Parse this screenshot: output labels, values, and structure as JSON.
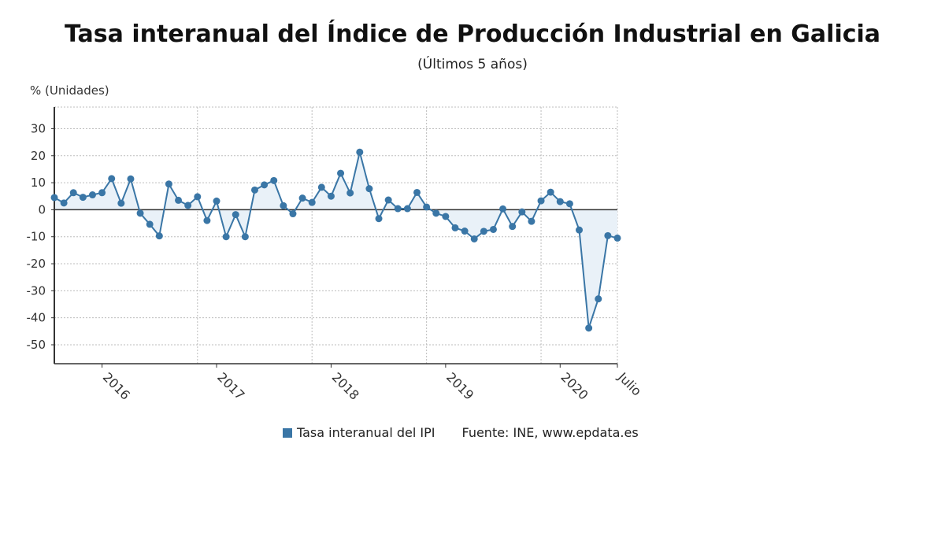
{
  "chart_data": {
    "type": "line",
    "title": "Tasa interanual del Índice de Producción Industrial en Galicia",
    "subtitle": "(Últimos 5 años)",
    "ylabel": "% (Unidades)",
    "ylim": [
      -57,
      38
    ],
    "yticks": [
      30,
      20,
      10,
      0,
      -10,
      -20,
      -30,
      -40,
      -50
    ],
    "x_tick_labels": [
      {
        "label": "2016",
        "index": 5
      },
      {
        "label": "2017",
        "index": 17
      },
      {
        "label": "2018",
        "index": 29
      },
      {
        "label": "2019",
        "index": 41
      },
      {
        "label": "2020",
        "index": 53
      },
      {
        "label": "Julio",
        "index": 59
      }
    ],
    "grid": true,
    "legend_position": "bottom",
    "series": [
      {
        "name": "Tasa interanual del IPI",
        "color": "#3a76a6",
        "values": [
          4.5,
          2.5,
          6.3,
          4.6,
          5.5,
          6.3,
          11.5,
          2.4,
          11.4,
          -1.3,
          -5.4,
          -9.7,
          9.5,
          3.5,
          1.6,
          4.8,
          -4.0,
          3.2,
          -10.0,
          -1.8,
          -10.0,
          7.3,
          9.2,
          10.8,
          1.5,
          -1.5,
          4.3,
          2.7,
          8.3,
          5.0,
          13.5,
          6.2,
          21.3,
          7.8,
          -3.3,
          3.6,
          0.4,
          0.4,
          6.4,
          1.0,
          -1.3,
          -2.5,
          -6.7,
          -7.9,
          -10.8,
          -8.0,
          -7.3,
          0.3,
          -6.2,
          -0.8,
          -4.3,
          3.3,
          6.5,
          3.0,
          2.2,
          -7.5,
          -43.8,
          -33.0,
          -9.6,
          -10.5
        ]
      }
    ],
    "legend": {
      "series_label": "Tasa interanual del IPI",
      "source": "Fuente: INE, www.epdata.es"
    },
    "colors": {
      "line": "#3a76a6",
      "area": "#e9f1f8",
      "axis": "#333333",
      "grid": "#bdbdbd"
    }
  }
}
